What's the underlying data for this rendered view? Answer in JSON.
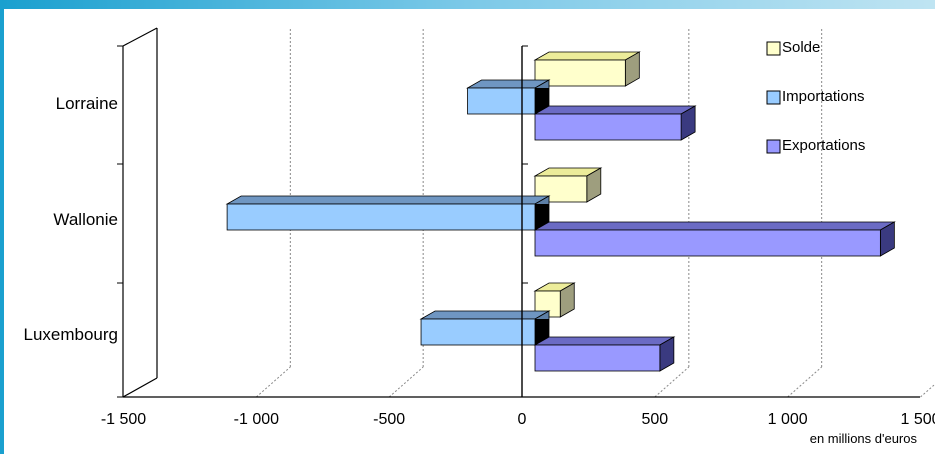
{
  "chart_data": {
    "type": "bar",
    "orientation": "horizontal",
    "categories": [
      "Lorraine",
      "Wallonie",
      "Luxembourg"
    ],
    "series": [
      {
        "name": "Solde",
        "values": [
          340,
          195,
          95
        ],
        "color": "#ffffcc",
        "side": "#9e9e7e",
        "top": "#ecec9a"
      },
      {
        "name": "Importations",
        "values": [
          -205,
          -1110,
          -380
        ],
        "color": "#99ccff",
        "side": "#5d7fa6",
        "top": "#6f96c2"
      },
      {
        "name": "Exportations",
        "values": [
          550,
          1300,
          470
        ],
        "color": "#9999ff",
        "side": "#3a3a80",
        "top": "#6b6bc4"
      }
    ],
    "xlim": [
      -1500,
      1500
    ],
    "xticks": [
      -1500,
      -1000,
      -500,
      0,
      500,
      1000,
      1500
    ],
    "xtick_labels": [
      "-1 500",
      "-1 000",
      "-500",
      "0",
      "500",
      "1 000",
      "1 500"
    ],
    "unit_label": "en millions d'euros",
    "grid": true,
    "legend_position": "top-right",
    "legend": [
      "Solde",
      "Importations",
      "Exportations"
    ]
  }
}
